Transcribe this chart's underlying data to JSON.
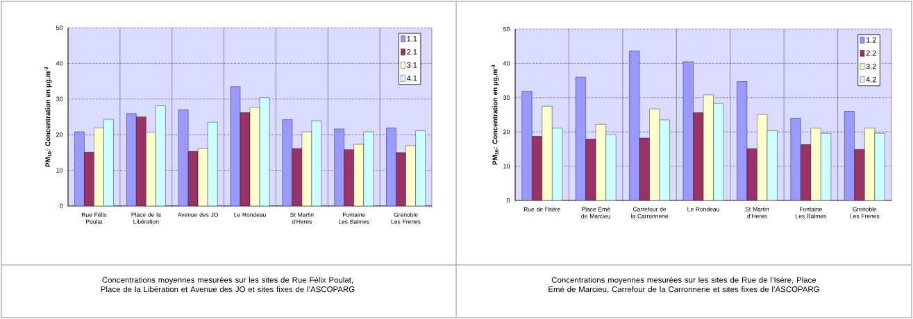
{
  "chart_data": [
    {
      "type": "bar",
      "ylabel": "PM$_{10}$: Concentration en µg.m$^{-3}$",
      "categories": [
        "Rue Félix Poulat",
        "Place de la Libération",
        "Avenue des JO",
        "Le Rondeau",
        "St Martin d'Heres",
        "Fontaine Les Balmes",
        "Grenoble Les Frenes"
      ],
      "series": [
        {
          "name": "1.1",
          "color": "#9999ff",
          "values": [
            20.8,
            25.9,
            27.0,
            33.5,
            24.2,
            21.6,
            21.9
          ]
        },
        {
          "name": "2.1",
          "color": "#993366",
          "values": [
            15.1,
            25.0,
            15.3,
            26.2,
            16.1,
            15.8,
            15.0
          ]
        },
        {
          "name": "3.1",
          "color": "#ffffcc",
          "values": [
            21.9,
            20.7,
            16.1,
            27.7,
            20.8,
            17.3,
            16.9
          ]
        },
        {
          "name": "4.1",
          "color": "#ccffff",
          "values": [
            24.3,
            28.1,
            23.5,
            30.4,
            23.9,
            20.8,
            21.1
          ]
        }
      ],
      "ylim": [
        0,
        50
      ],
      "yticks": [
        0,
        10,
        20,
        30,
        40,
        50
      ],
      "grid": true,
      "legend": "top right",
      "annotations": [
        "Concentrations moyennes mesurées sur les  sites de Rue Félix Poulat, Place de la Libération et Avenue des JO et sites fixes de l’ASCOPARG"
      ]
    },
    {
      "type": "bar",
      "ylabel": "PM$_{10}$: Concentration en µg.m$^{-3}$",
      "categories": [
        "Rue de l'Isère",
        "Place Emé de Marcieu",
        "Carrefour de la Carronnerie",
        "Le Rondeau",
        "St Martin d'Heres",
        "Fontaine Les Balmes",
        "Grenoble Les Frenes"
      ],
      "series": [
        {
          "name": "1.2",
          "color": "#9999ff",
          "values": [
            31.9,
            36.0,
            43.6,
            40.5,
            34.7,
            24.0,
            26.0
          ]
        },
        {
          "name": "2.2",
          "color": "#993366",
          "values": [
            18.7,
            17.9,
            18.2,
            25.6,
            15.1,
            16.3,
            14.9
          ]
        },
        {
          "name": "3.2",
          "color": "#ffffcc",
          "values": [
            27.5,
            22.2,
            26.7,
            30.8,
            25.1,
            21.1,
            21.1
          ]
        },
        {
          "name": "4.2",
          "color": "#ccffff",
          "values": [
            21.1,
            19.2,
            23.5,
            28.3,
            20.4,
            19.6,
            19.6
          ]
        }
      ],
      "ylim": [
        0,
        50
      ],
      "yticks": [
        0,
        10,
        20,
        30,
        40,
        50
      ],
      "grid": true,
      "legend": "top right",
      "annotations": [
        "Concentrations moyennes mesurées sur les sites de Rue de l’Isère, Place Emé de Marcieu, Carrefour de la Carronnerie et sites fixes de l’ASCOPARG"
      ]
    }
  ]
}
